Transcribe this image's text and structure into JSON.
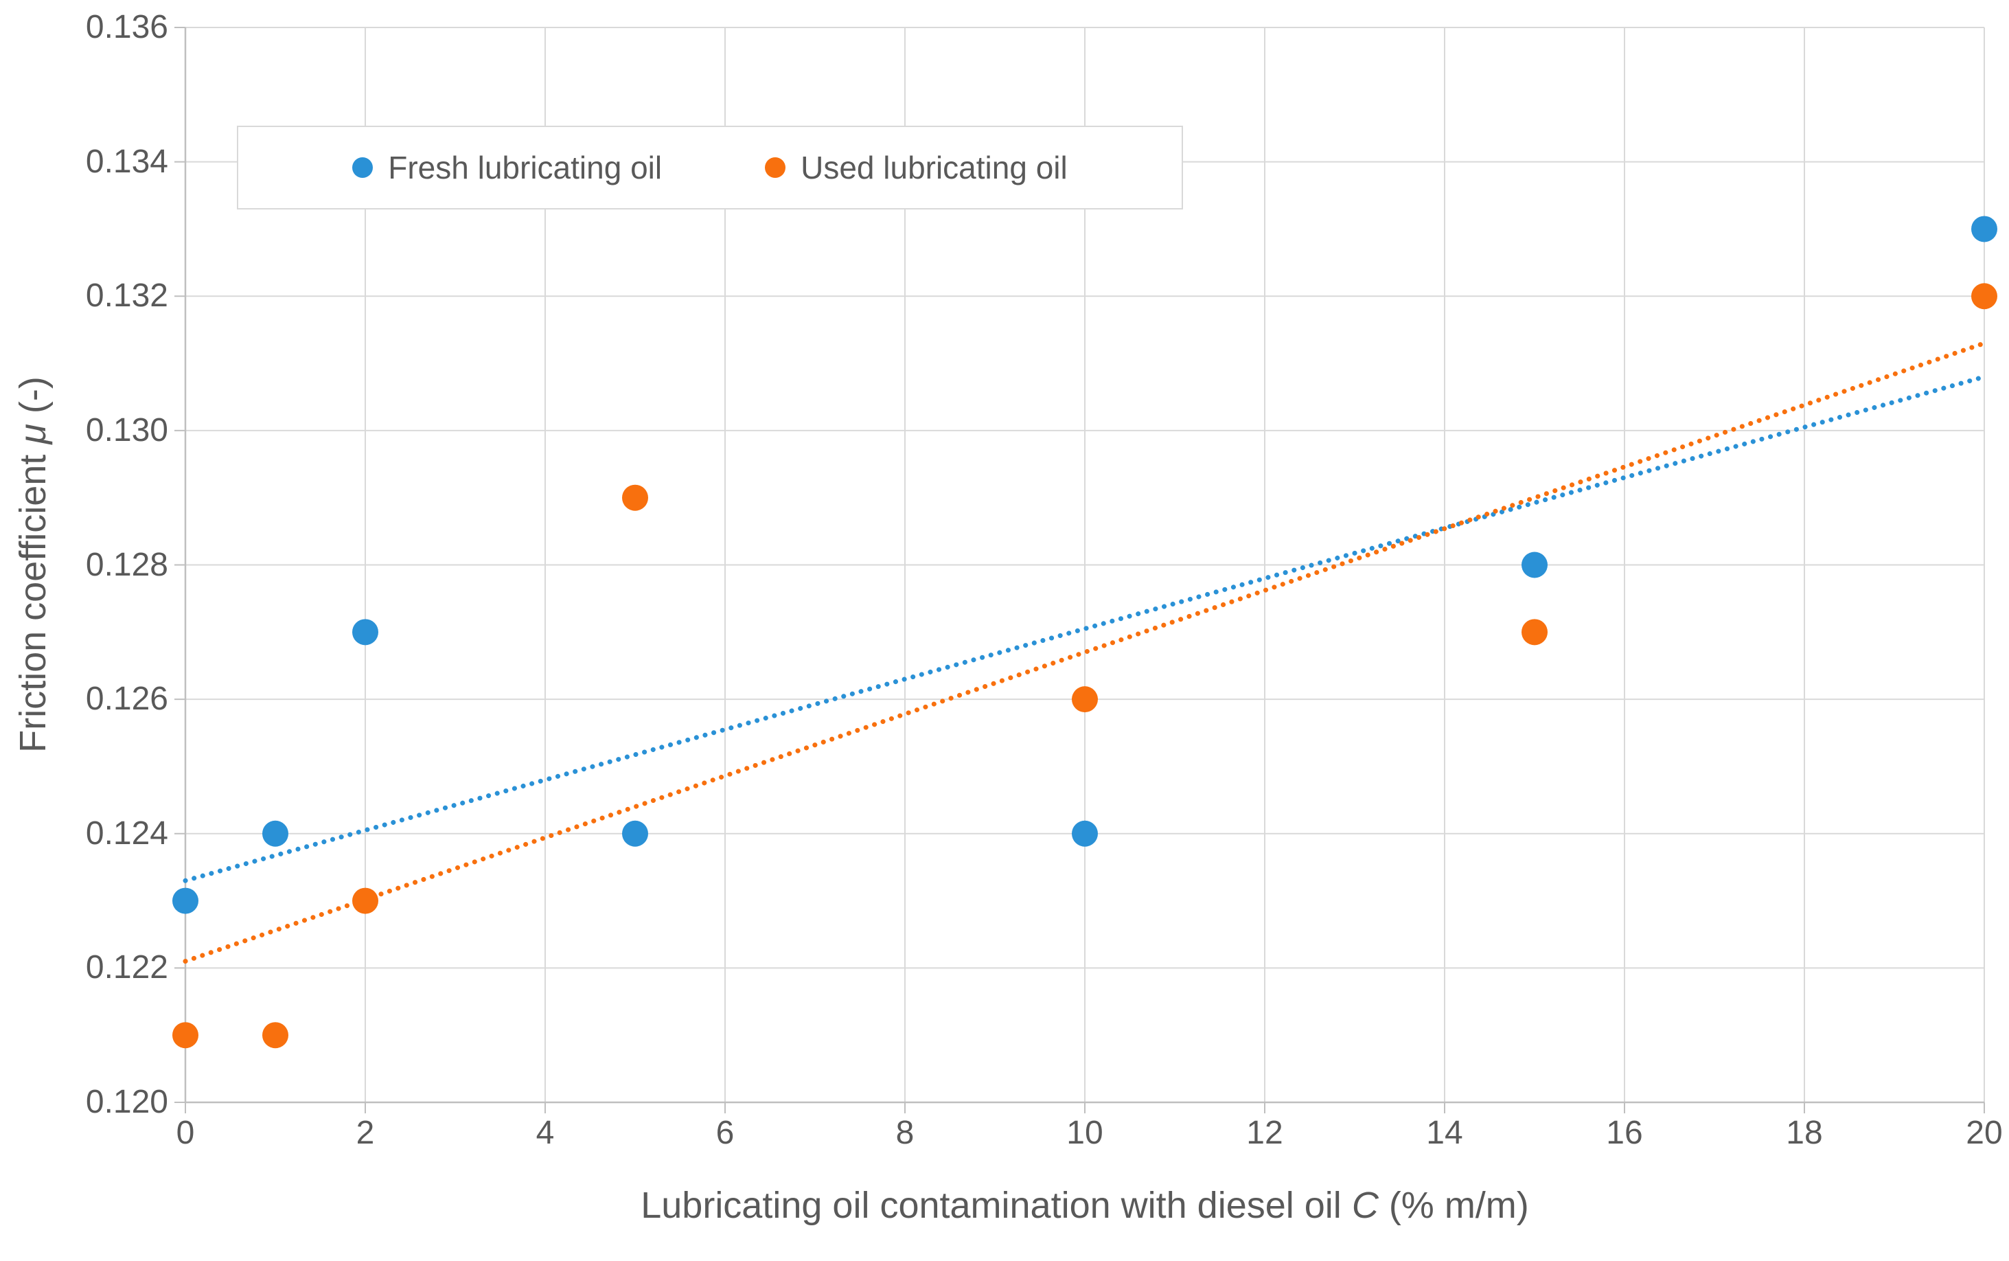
{
  "chart_data": {
    "type": "scatter",
    "title": "",
    "xlabel_prefix": "Lubricating oil contamination with diesel oil ",
    "xlabel_var": "C",
    "xlabel_suffix": " (% m/m)",
    "ylabel_prefix": "Friction coefficient ",
    "ylabel_var": "μ",
    "ylabel_suffix": " (-)",
    "xlim": [
      0,
      20
    ],
    "ylim": [
      0.12,
      0.136
    ],
    "x_ticks": [
      "0",
      "2",
      "4",
      "6",
      "8",
      "10",
      "12",
      "14",
      "16",
      "18",
      "20"
    ],
    "y_ticks": [
      "0.136",
      "0.134",
      "0.132",
      "0.130",
      "0.128",
      "0.126",
      "0.124",
      "0.122",
      "0.120"
    ],
    "grid": true,
    "legend_position": "top-left-inside",
    "series": [
      {
        "name": "Fresh lubricating oil",
        "color": "#2A91D6",
        "marker": "circle",
        "x": [
          0,
          1,
          2,
          5,
          10,
          15,
          20
        ],
        "y": [
          0.123,
          0.124,
          0.127,
          0.124,
          0.124,
          0.128,
          0.133
        ],
        "trendline": {
          "style": "dotted",
          "x0": 0,
          "y0": 0.1233,
          "x1": 20,
          "y1": 0.1308
        }
      },
      {
        "name": "Used lubricating oil",
        "color": "#F8700E",
        "marker": "circle",
        "x": [
          0,
          1,
          2,
          5,
          10,
          15,
          20
        ],
        "y": [
          0.121,
          0.121,
          0.123,
          0.129,
          0.126,
          0.127,
          0.132
        ],
        "trendline": {
          "style": "dotted",
          "x0": 0,
          "y0": 0.1221,
          "x1": 20,
          "y1": 0.1313
        }
      }
    ]
  },
  "colors": {
    "gridline": "#D9D9D9",
    "axis_line": "#BFBFBF",
    "tick_mark": "#BFBFBF",
    "text": "#595959",
    "background": "#FFFFFF",
    "series_fresh": "#2A91D6",
    "series_used": "#F8700E"
  }
}
